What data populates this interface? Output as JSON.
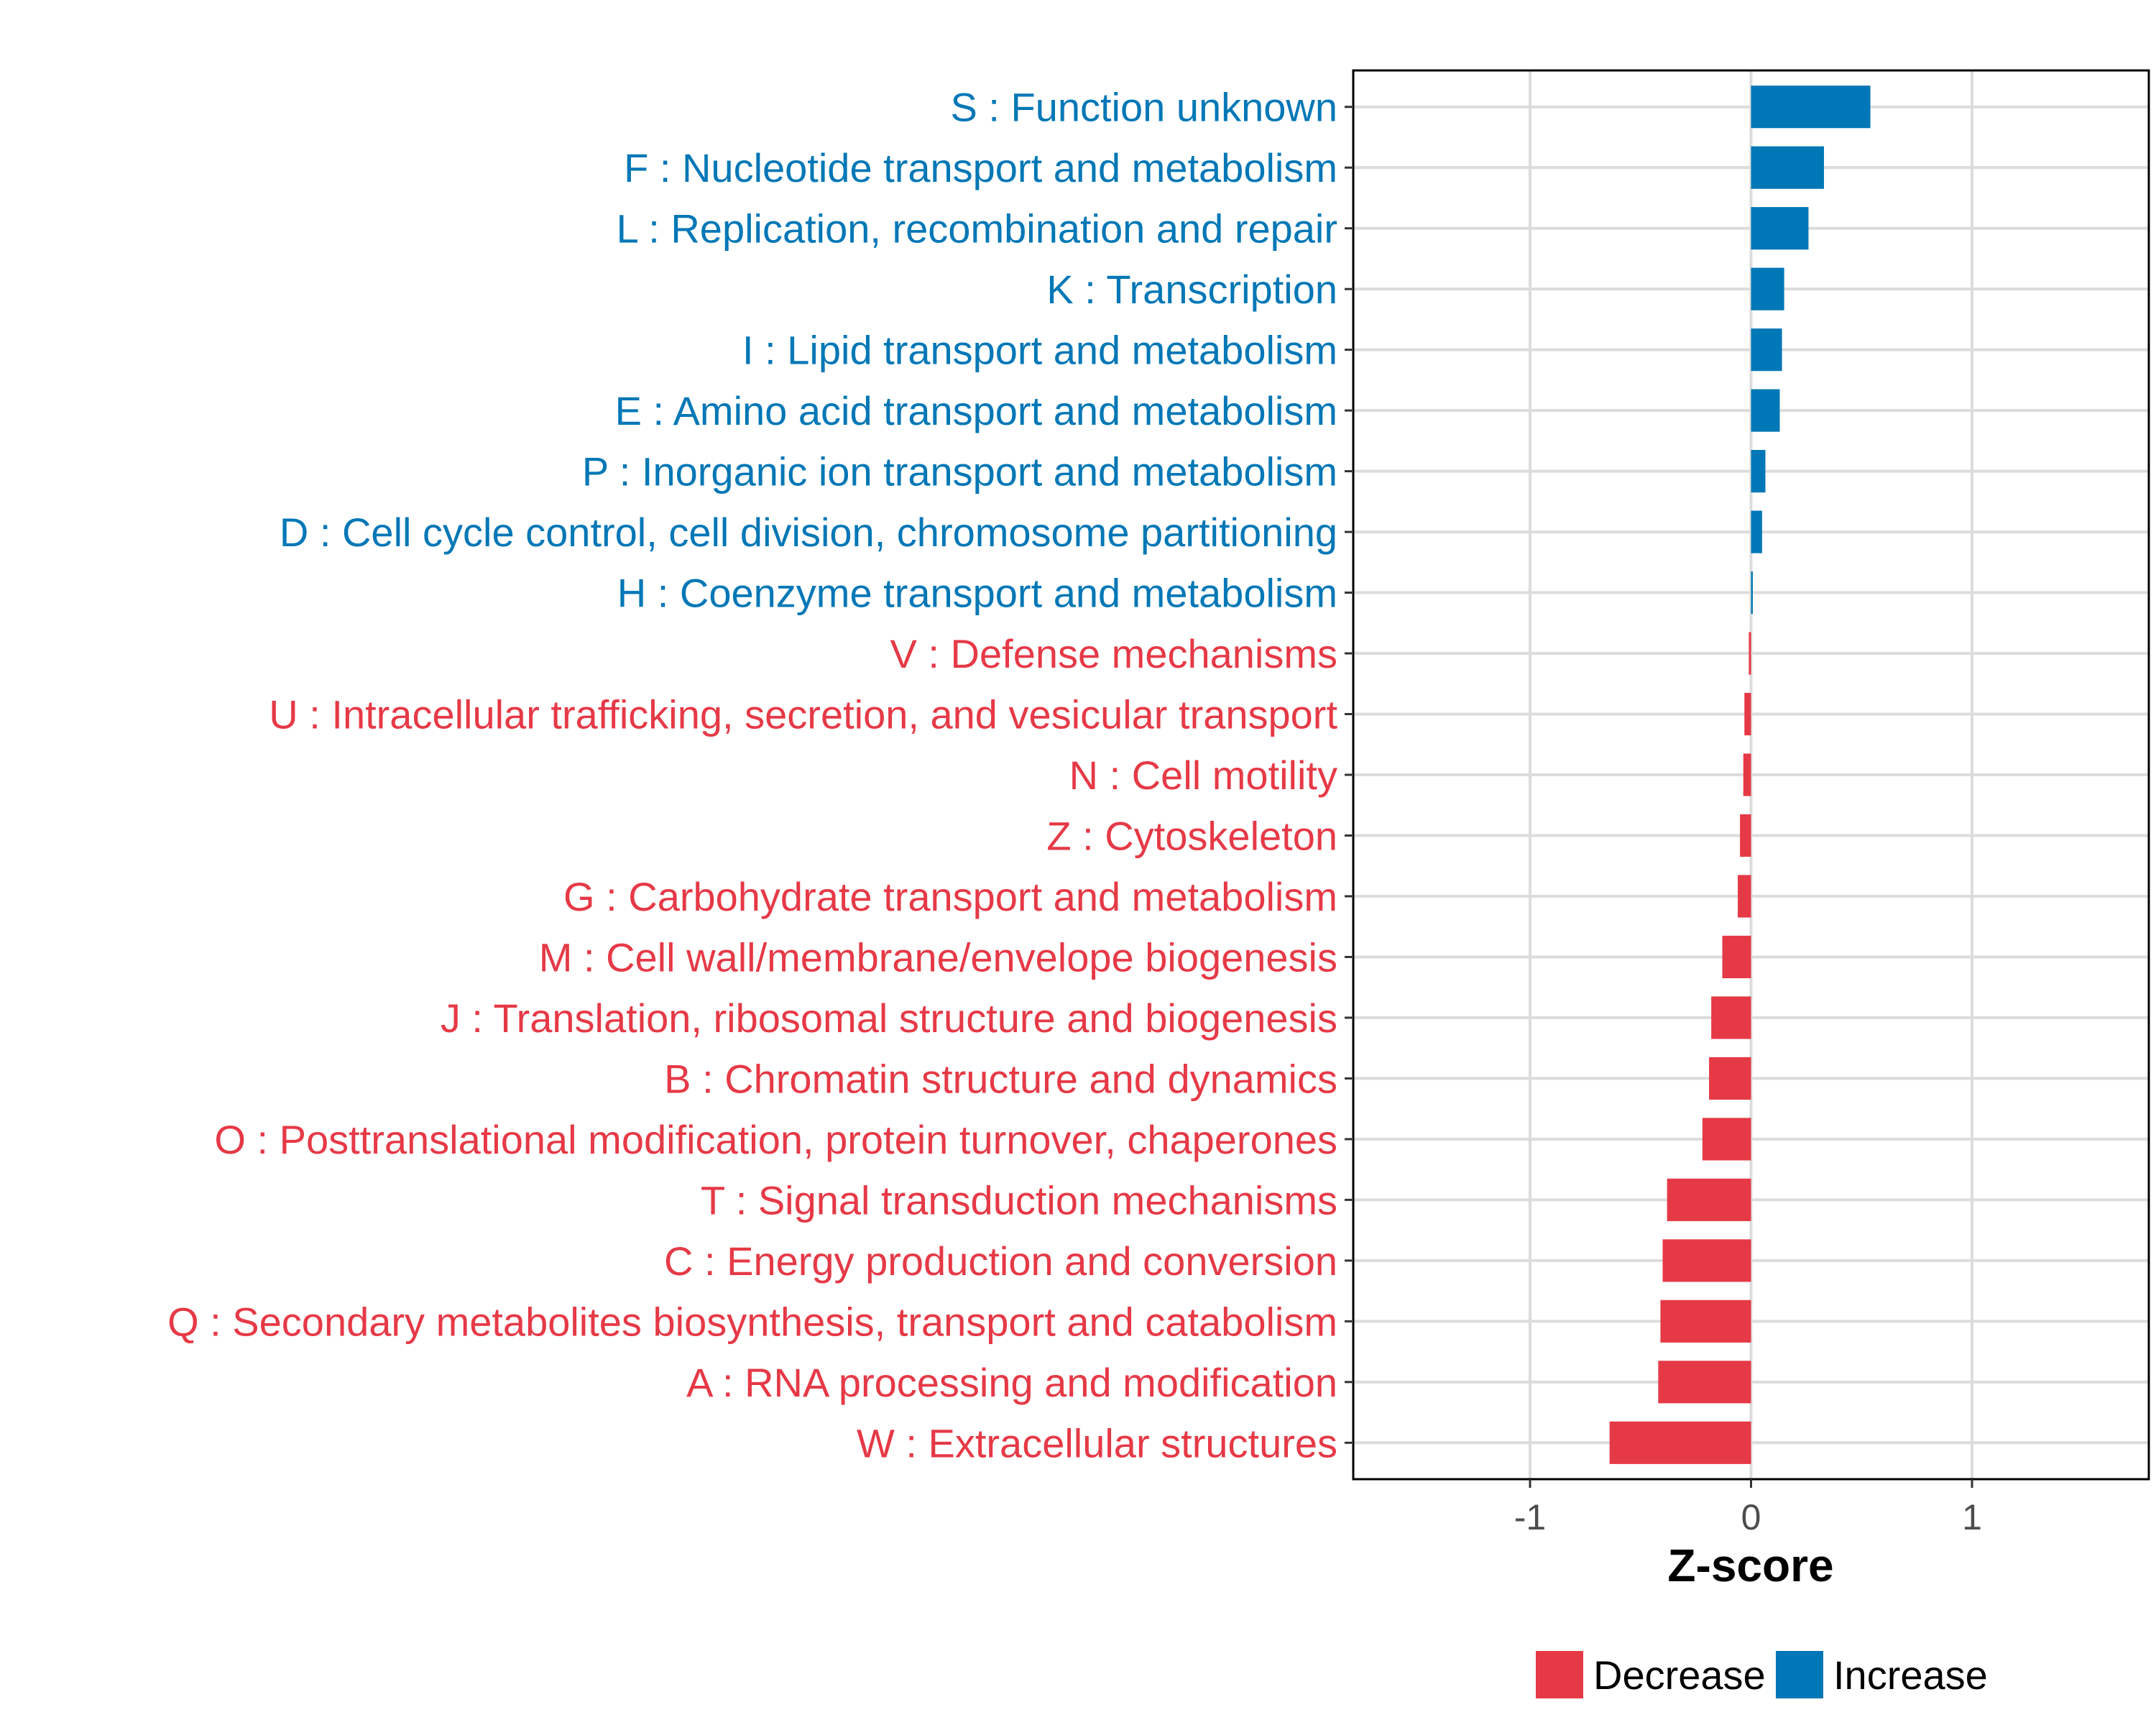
{
  "chart_data": {
    "type": "bar",
    "orientation": "horizontal",
    "xlabel": "Z-score",
    "ylabel": "",
    "xlim": [
      -1.8,
      1.8
    ],
    "xticks": [
      -1,
      0,
      1
    ],
    "xtick_labels": [
      "-1",
      "0",
      "1"
    ],
    "grid": true,
    "categories": [
      "S : Function unknown",
      "F : Nucleotide transport and metabolism",
      "L : Replication, recombination and repair",
      "K : Transcription",
      "I : Lipid transport and metabolism",
      "E : Amino acid transport and metabolism",
      "P : Inorganic ion transport and metabolism",
      "D : Cell cycle control, cell division, chromosome partitioning",
      "H : Coenzyme transport and metabolism",
      "V : Defense mechanisms",
      "U : Intracellular trafficking, secretion, and vesicular transport",
      "N : Cell motility",
      "Z : Cytoskeleton",
      "G : Carbohydrate transport and metabolism",
      "M : Cell wall/membrane/envelope biogenesis",
      "J : Translation, ribosomal structure and biogenesis",
      "B : Chromatin structure and dynamics",
      "O : Posttranslational modification, protein turnover, chaperones",
      "T : Signal transduction mechanisms",
      "C : Energy production and conversion",
      "Q : Secondary metabolites biosynthesis, transport and catabolism",
      "A : RNA processing and modification",
      "W : Extracellular structures"
    ],
    "values": [
      0.54,
      0.33,
      0.26,
      0.15,
      0.14,
      0.13,
      0.065,
      0.05,
      0.008,
      -0.01,
      -0.03,
      -0.035,
      -0.05,
      -0.06,
      -0.13,
      -0.18,
      -0.19,
      -0.22,
      -0.38,
      -0.4,
      -0.41,
      -0.42,
      -0.64
    ],
    "groups": [
      "Increase",
      "Increase",
      "Increase",
      "Increase",
      "Increase",
      "Increase",
      "Increase",
      "Increase",
      "Increase",
      "Decrease",
      "Decrease",
      "Decrease",
      "Decrease",
      "Decrease",
      "Decrease",
      "Decrease",
      "Decrease",
      "Decrease",
      "Decrease",
      "Decrease",
      "Decrease",
      "Decrease",
      "Decrease"
    ],
    "legend": {
      "position": "bottom",
      "entries": [
        {
          "label": "Decrease",
          "color": "#E63946"
        },
        {
          "label": "Increase",
          "color": "#0077B6"
        }
      ]
    },
    "colors": {
      "Decrease": "#E63946",
      "Increase": "#0077B6"
    }
  }
}
